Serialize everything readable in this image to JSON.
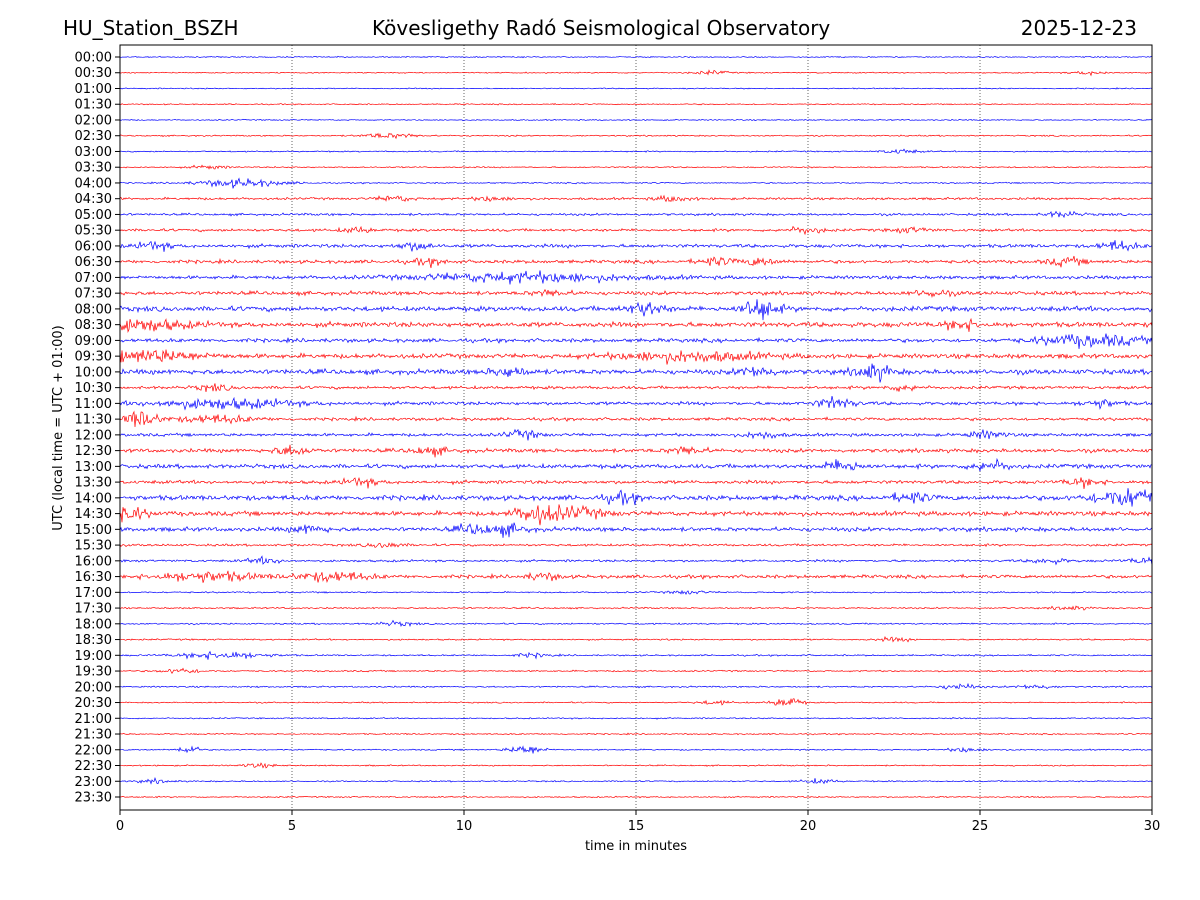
{
  "header": {
    "station": "HU_Station_BSZH",
    "observatory": "Kövesligethy Radó Seismological Observatory",
    "date": "2025-12-23"
  },
  "chart_data": {
    "type": "line",
    "title": "Kövesligethy Radó Seismological Observatory",
    "xlabel": "time in minutes",
    "ylabel": "UTC (local time = UTC + 01:00)",
    "xlim": [
      0,
      30
    ],
    "x_ticks": [
      "0",
      "5",
      "10",
      "15",
      "20",
      "25",
      "30"
    ],
    "grid": "vertical dotted at every 5 minutes",
    "colors": [
      "#0000ff",
      "#ff0000"
    ],
    "rows": [
      {
        "label": "00:00",
        "noise": 0.3,
        "bursts": []
      },
      {
        "label": "00:30",
        "noise": 0.3,
        "bursts": [
          [
            17.2,
            1
          ],
          [
            28.2,
            1
          ]
        ]
      },
      {
        "label": "01:00",
        "noise": 0.3,
        "bursts": []
      },
      {
        "label": "01:30",
        "noise": 0.3,
        "bursts": []
      },
      {
        "label": "02:00",
        "noise": 0.3,
        "bursts": []
      },
      {
        "label": "02:30",
        "noise": 0.35,
        "bursts": [
          [
            7.5,
            1
          ],
          [
            8.2,
            1
          ]
        ]
      },
      {
        "label": "03:00",
        "noise": 0.35,
        "bursts": [
          [
            22.7,
            1.2
          ]
        ]
      },
      {
        "label": "03:30",
        "noise": 0.35,
        "bursts": [
          [
            2.6,
            1
          ]
        ]
      },
      {
        "label": "04:00",
        "noise": 0.35,
        "bursts": [
          [
            3.5,
            2.2,
            1.2
          ]
        ]
      },
      {
        "label": "04:30",
        "noise": 0.6,
        "bursts": [
          [
            8,
            1.5
          ],
          [
            10.8,
            1.2
          ],
          [
            16.1,
            1.5
          ]
        ]
      },
      {
        "label": "05:00",
        "noise": 0.6,
        "bursts": [
          [
            27.4,
            1.5
          ]
        ]
      },
      {
        "label": "05:30",
        "noise": 0.7,
        "bursts": [
          [
            6.9,
            1.3
          ],
          [
            19.9,
            1.8
          ],
          [
            23,
            1.3
          ]
        ]
      },
      {
        "label": "06:00",
        "noise": 0.9,
        "bursts": [
          [
            1,
            2
          ],
          [
            8.6,
            2
          ],
          [
            29,
            2.5
          ]
        ]
      },
      {
        "label": "06:30",
        "noise": 0.9,
        "bursts": [
          [
            9,
            1.5
          ],
          [
            17.3,
            2
          ],
          [
            18.6,
            2
          ],
          [
            27.5,
            2
          ]
        ]
      },
      {
        "label": "07:00",
        "noise": 0.9,
        "bursts": [
          [
            11.8,
            2.5,
            3
          ]
        ]
      },
      {
        "label": "07:30",
        "noise": 1,
        "bursts": [
          [
            12.5,
            1.5
          ],
          [
            23.6,
            1.8
          ]
        ]
      },
      {
        "label": "08:00",
        "noise": 1.3,
        "bursts": [
          [
            15.3,
            3.5
          ],
          [
            18.6,
            5.5
          ]
        ]
      },
      {
        "label": "08:30",
        "noise": 1.3,
        "bursts": [
          [
            0.4,
            3,
            1.5
          ],
          [
            24.5,
            2.5
          ]
        ]
      },
      {
        "label": "09:00",
        "noise": 1,
        "bursts": [
          [
            28.2,
            3,
            1.5
          ]
        ]
      },
      {
        "label": "09:30",
        "noise": 1.2,
        "bursts": [
          [
            0.8,
            3,
            1.5
          ],
          [
            16.5,
            2.5,
            2
          ]
        ]
      },
      {
        "label": "10:00",
        "noise": 1.3,
        "bursts": [
          [
            11.3,
            2.5
          ],
          [
            18.5,
            2.5
          ],
          [
            21.9,
            4
          ]
        ]
      },
      {
        "label": "10:30",
        "noise": 0.8,
        "bursts": [
          [
            2.7,
            1.5
          ],
          [
            22.8,
            1.5
          ]
        ]
      },
      {
        "label": "11:00",
        "noise": 0.9,
        "bursts": [
          [
            3,
            2.5,
            2
          ],
          [
            20.8,
            3
          ],
          [
            28.5,
            2
          ]
        ]
      },
      {
        "label": "11:30",
        "noise": 0.8,
        "bursts": [
          [
            0.6,
            4.5,
            0.5
          ],
          [
            2.8,
            2,
            1
          ]
        ]
      },
      {
        "label": "12:00",
        "noise": 0.8,
        "bursts": [
          [
            11.7,
            2
          ],
          [
            18.7,
            1.8
          ],
          [
            25.2,
            2
          ]
        ]
      },
      {
        "label": "12:30",
        "noise": 1,
        "bursts": [
          [
            5,
            2.5
          ],
          [
            9,
            2
          ],
          [
            16.5,
            2
          ]
        ]
      },
      {
        "label": "13:00",
        "noise": 1.1,
        "bursts": [
          [
            21,
            3
          ],
          [
            25.3,
            3
          ]
        ]
      },
      {
        "label": "13:30",
        "noise": 0.9,
        "bursts": [
          [
            7,
            2
          ],
          [
            28,
            2
          ]
        ]
      },
      {
        "label": "14:00",
        "noise": 1.3,
        "bursts": [
          [
            14.6,
            2.5
          ],
          [
            23,
            2.5
          ],
          [
            29.4,
            5,
            1
          ]
        ]
      },
      {
        "label": "14:30",
        "noise": 1.2,
        "bursts": [
          [
            0.1,
            4,
            0.6
          ],
          [
            12,
            4
          ],
          [
            13,
            3,
            1
          ]
        ]
      },
      {
        "label": "15:00",
        "noise": 1.1,
        "bursts": [
          [
            5.5,
            2
          ],
          [
            10.3,
            2.5
          ],
          [
            11.3,
            2.5
          ]
        ]
      },
      {
        "label": "15:30",
        "noise": 0.6,
        "bursts": [
          [
            7.7,
            1.5
          ]
        ]
      },
      {
        "label": "16:00",
        "noise": 0.6,
        "bursts": [
          [
            4.2,
            1.5
          ],
          [
            27,
            1.5
          ],
          [
            29.8,
            1.5
          ]
        ]
      },
      {
        "label": "16:30",
        "noise": 0.9,
        "bursts": [
          [
            2.5,
            2.5,
            1.5
          ],
          [
            6.2,
            2.5,
            1
          ],
          [
            12.3,
            1.8
          ]
        ]
      },
      {
        "label": "17:00",
        "noise": 0.4,
        "bursts": [
          [
            16.5,
            1
          ]
        ]
      },
      {
        "label": "17:30",
        "noise": 0.4,
        "bursts": [
          [
            27.6,
            1
          ]
        ]
      },
      {
        "label": "18:00",
        "noise": 0.4,
        "bursts": [
          [
            8,
            1.2
          ]
        ]
      },
      {
        "label": "18:30",
        "noise": 0.4,
        "bursts": [
          [
            22.5,
            1
          ]
        ]
      },
      {
        "label": "19:00",
        "noise": 0.4,
        "bursts": [
          [
            3,
            2,
            1.2
          ],
          [
            12,
            1
          ]
        ]
      },
      {
        "label": "19:30",
        "noise": 0.4,
        "bursts": [
          [
            1.8,
            1.5
          ]
        ]
      },
      {
        "label": "20:00",
        "noise": 0.4,
        "bursts": [
          [
            24.4,
            1.5
          ],
          [
            26.6,
            1.2
          ]
        ]
      },
      {
        "label": "20:30",
        "noise": 0.35,
        "bursts": [
          [
            19.4,
            3,
            0.4
          ],
          [
            17.3,
            1
          ]
        ]
      },
      {
        "label": "21:00",
        "noise": 0.35,
        "bursts": []
      },
      {
        "label": "21:30",
        "noise": 0.35,
        "bursts": []
      },
      {
        "label": "22:00",
        "noise": 0.35,
        "bursts": [
          [
            2,
            2.5,
            0.3
          ],
          [
            11.8,
            2.5,
            0.5
          ],
          [
            24.6,
            1.2
          ]
        ]
      },
      {
        "label": "22:30",
        "noise": 0.35,
        "bursts": [
          [
            4,
            1
          ]
        ]
      },
      {
        "label": "23:00",
        "noise": 0.35,
        "bursts": [
          [
            1,
            1
          ],
          [
            20.3,
            1.2
          ]
        ]
      },
      {
        "label": "23:30",
        "noise": 0.35,
        "bursts": []
      }
    ]
  }
}
